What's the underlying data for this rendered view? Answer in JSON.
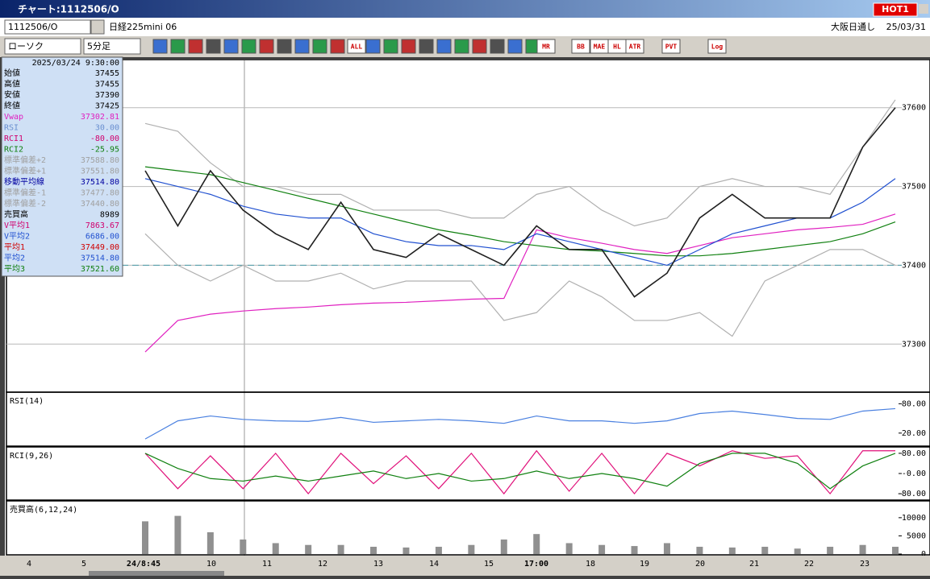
{
  "window": {
    "title": "チャート:1112506/O",
    "hot": "HOT1",
    "symbol": "1112506/O",
    "name": "日経225mini 06",
    "session": "大阪日通し",
    "date": "25/03/31",
    "chart_style": "ローソク",
    "interval": "5分足",
    "tool_labels": [
      "ALL",
      "MR",
      "BB",
      "MAE",
      "HL",
      "ATR",
      "PVT",
      "Log"
    ]
  },
  "info": {
    "datetime": "2025/03/24 9:30:00",
    "rows": [
      {
        "label": "始値",
        "value": "37455",
        "color": "#000000"
      },
      {
        "label": "高値",
        "value": "37455",
        "color": "#000000"
      },
      {
        "label": "安値",
        "value": "37390",
        "color": "#000000"
      },
      {
        "label": "終値",
        "value": "37425",
        "color": "#000000"
      },
      {
        "label": "Vwap",
        "value": "37302.81",
        "color": "#e020c0"
      },
      {
        "label": "RSI",
        "value": "30.00",
        "color": "#6a8fd0"
      },
      {
        "label": "RCI1",
        "value": "-80.00",
        "color": "#d0006e"
      },
      {
        "label": "RCI2",
        "value": "-25.95",
        "color": "#108010"
      },
      {
        "label": "標準偏差+2",
        "value": "37588.80",
        "color": "#a0a0a0"
      },
      {
        "label": "標準偏差+1",
        "value": "37551.80",
        "color": "#a0a0a0"
      },
      {
        "label": "移動平均線",
        "value": "37514.80",
        "color": "#0000a0"
      },
      {
        "label": "標準偏差-1",
        "value": "37477.80",
        "color": "#a0a0a0"
      },
      {
        "label": "標準偏差-2",
        "value": "37440.80",
        "color": "#a0a0a0"
      },
      {
        "label": "売買高",
        "value": "8989",
        "color": "#000000"
      },
      {
        "label": "V平均1",
        "value": "7863.67",
        "color": "#d0006e"
      },
      {
        "label": "V平均2",
        "value": "6686.00",
        "color": "#2050d0"
      },
      {
        "label": "平均1",
        "value": "37449.00",
        "color": "#d00000"
      },
      {
        "label": "平均2",
        "value": "37514.80",
        "color": "#2050d0"
      },
      {
        "label": "平均3",
        "value": "37521.60",
        "color": "#108010"
      }
    ]
  },
  "time_axis": [
    "4",
    "5",
    "24/8:45",
    "10",
    "11",
    "12",
    "13",
    "14",
    "15",
    "17:00",
    "18",
    "19",
    "20",
    "21",
    "22",
    "23"
  ],
  "chart_data": [
    {
      "type": "line",
      "ylim": [
        37240,
        37660
      ],
      "yticks": [
        37300,
        37400,
        37500,
        37600
      ],
      "ref_line": 37400,
      "grid": true,
      "series": [
        {
          "color": "#b0b0b0",
          "values": [
            37580,
            37570,
            37530,
            37500,
            37500,
            37490,
            37490,
            37470,
            37470,
            37470,
            37460,
            37460,
            37490,
            37500,
            37470,
            37450,
            37460,
            37500,
            37510,
            37500,
            37500,
            37490,
            37550,
            37610
          ]
        },
        {
          "color": "#b0b0b0",
          "values": [
            37440,
            37400,
            37380,
            37400,
            37380,
            37380,
            37390,
            37370,
            37380,
            37380,
            37380,
            37330,
            37340,
            37380,
            37360,
            37330,
            37330,
            37340,
            37310,
            37380,
            37400,
            37420,
            37420,
            37400
          ]
        },
        {
          "color": "#e020c0",
          "values": [
            37290,
            37330,
            37338,
            37342,
            37345,
            37347,
            37350,
            37352,
            37353,
            37355,
            37357,
            37358,
            37445,
            37435,
            37428,
            37420,
            37415,
            37425,
            37435,
            37440,
            37445,
            37448,
            37452,
            37465
          ]
        },
        {
          "color": "#108010",
          "values": [
            37525,
            37520,
            37515,
            37505,
            37495,
            37485,
            37475,
            37465,
            37455,
            37445,
            37438,
            37430,
            37425,
            37420,
            37418,
            37415,
            37412,
            37412,
            37415,
            37420,
            37425,
            37430,
            37440,
            37455
          ]
        },
        {
          "color": "#2050d0",
          "values": [
            37510,
            37500,
            37490,
            37475,
            37465,
            37460,
            37460,
            37440,
            37430,
            37425,
            37425,
            37420,
            37440,
            37430,
            37420,
            37410,
            37400,
            37420,
            37440,
            37450,
            37460,
            37460,
            37480,
            37510
          ]
        },
        {
          "color": "#202020",
          "values": [
            37520,
            37450,
            37520,
            37470,
            37440,
            37420,
            37480,
            37420,
            37410,
            37440,
            37420,
            37400,
            37450,
            37420,
            37420,
            37360,
            37390,
            37460,
            37490,
            37460,
            37460,
            37460,
            37550,
            37600
          ]
        }
      ]
    },
    {
      "type": "line",
      "title": "RSI(14)",
      "ylim": [
        -5,
        102
      ],
      "yticks": [
        {
          "value": 80,
          "label": "80.00"
        },
        {
          "value": 20,
          "label": "20.00"
        }
      ],
      "series": [
        {
          "color": "#4a80e0",
          "values": [
            8,
            45,
            55,
            48,
            45,
            44,
            52,
            42,
            45,
            48,
            45,
            40,
            55,
            45,
            45,
            40,
            45,
            60,
            65,
            58,
            50,
            48,
            65,
            70
          ]
        }
      ]
    },
    {
      "type": "line",
      "title": "RCI(9,26)",
      "ylim": [
        -102,
        102
      ],
      "yticks": [
        {
          "value": 80,
          "label": "80.00"
        },
        {
          "value": 0,
          "label": "-0.00"
        },
        {
          "value": -80,
          "label": "-80.00"
        }
      ],
      "series": [
        {
          "color": "#e0107a",
          "values": [
            80,
            -60,
            70,
            -60,
            80,
            -80,
            80,
            -40,
            70,
            -60,
            80,
            -80,
            90,
            -70,
            80,
            -80,
            80,
            30,
            90,
            60,
            70,
            -80,
            90,
            90
          ]
        },
        {
          "color": "#108010",
          "values": [
            80,
            20,
            -20,
            -30,
            -10,
            -30,
            -10,
            10,
            -20,
            0,
            -30,
            -20,
            10,
            -20,
            0,
            -20,
            -50,
            40,
            80,
            80,
            40,
            -60,
            30,
            80
          ]
        }
      ]
    },
    {
      "type": "bar",
      "title": "売買高(6,12,24)",
      "ylim": [
        0,
        14400
      ],
      "yticks": [
        10000,
        5000,
        0
      ],
      "color": "#909090",
      "values": [
        9000,
        10500,
        6000,
        4000,
        3000,
        2500,
        2500,
        2000,
        1800,
        2000,
        2500,
        4000,
        5500,
        3000,
        2500,
        2200,
        3000,
        2000,
        1800,
        2000,
        1500,
        2000,
        2500,
        2000
      ]
    }
  ]
}
